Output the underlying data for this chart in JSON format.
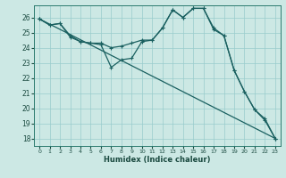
{
  "xlabel": "Humidex (Indice chaleur)",
  "background_color": "#cce8e4",
  "grid_color": "#99cccc",
  "line_color": "#1a6060",
  "xlim": [
    -0.5,
    23.5
  ],
  "ylim": [
    17.5,
    26.8
  ],
  "yticks": [
    18,
    19,
    20,
    21,
    22,
    23,
    24,
    25,
    26
  ],
  "xticks": [
    0,
    1,
    2,
    3,
    4,
    5,
    6,
    7,
    8,
    9,
    10,
    11,
    12,
    13,
    14,
    15,
    16,
    17,
    18,
    19,
    20,
    21,
    22,
    23
  ],
  "line1_x": [
    0,
    1,
    2,
    3,
    4,
    5,
    6,
    7,
    8,
    9,
    10,
    11,
    12,
    13,
    14,
    15,
    16,
    17,
    18,
    19,
    20,
    21,
    22,
    23
  ],
  "line1_y": [
    25.9,
    25.5,
    25.6,
    24.7,
    24.4,
    24.3,
    24.2,
    22.7,
    23.2,
    23.3,
    24.4,
    24.5,
    25.3,
    26.5,
    26.0,
    26.6,
    26.6,
    25.2,
    24.8,
    22.5,
    21.1,
    19.9,
    19.2,
    18.0
  ],
  "line2_x": [
    0,
    1,
    2,
    3,
    4,
    5,
    6,
    7,
    8,
    9,
    10,
    11,
    12,
    13,
    14,
    15,
    16,
    17,
    18,
    19,
    20,
    21,
    22,
    23
  ],
  "line2_y": [
    25.9,
    25.5,
    25.6,
    24.8,
    24.4,
    24.3,
    24.3,
    24.0,
    24.1,
    24.3,
    24.5,
    24.5,
    25.3,
    26.5,
    26.0,
    26.6,
    26.6,
    25.3,
    24.8,
    22.5,
    21.1,
    19.9,
    19.3,
    18.0
  ],
  "line3_x": [
    0,
    23
  ],
  "line3_y": [
    25.9,
    18.0
  ]
}
